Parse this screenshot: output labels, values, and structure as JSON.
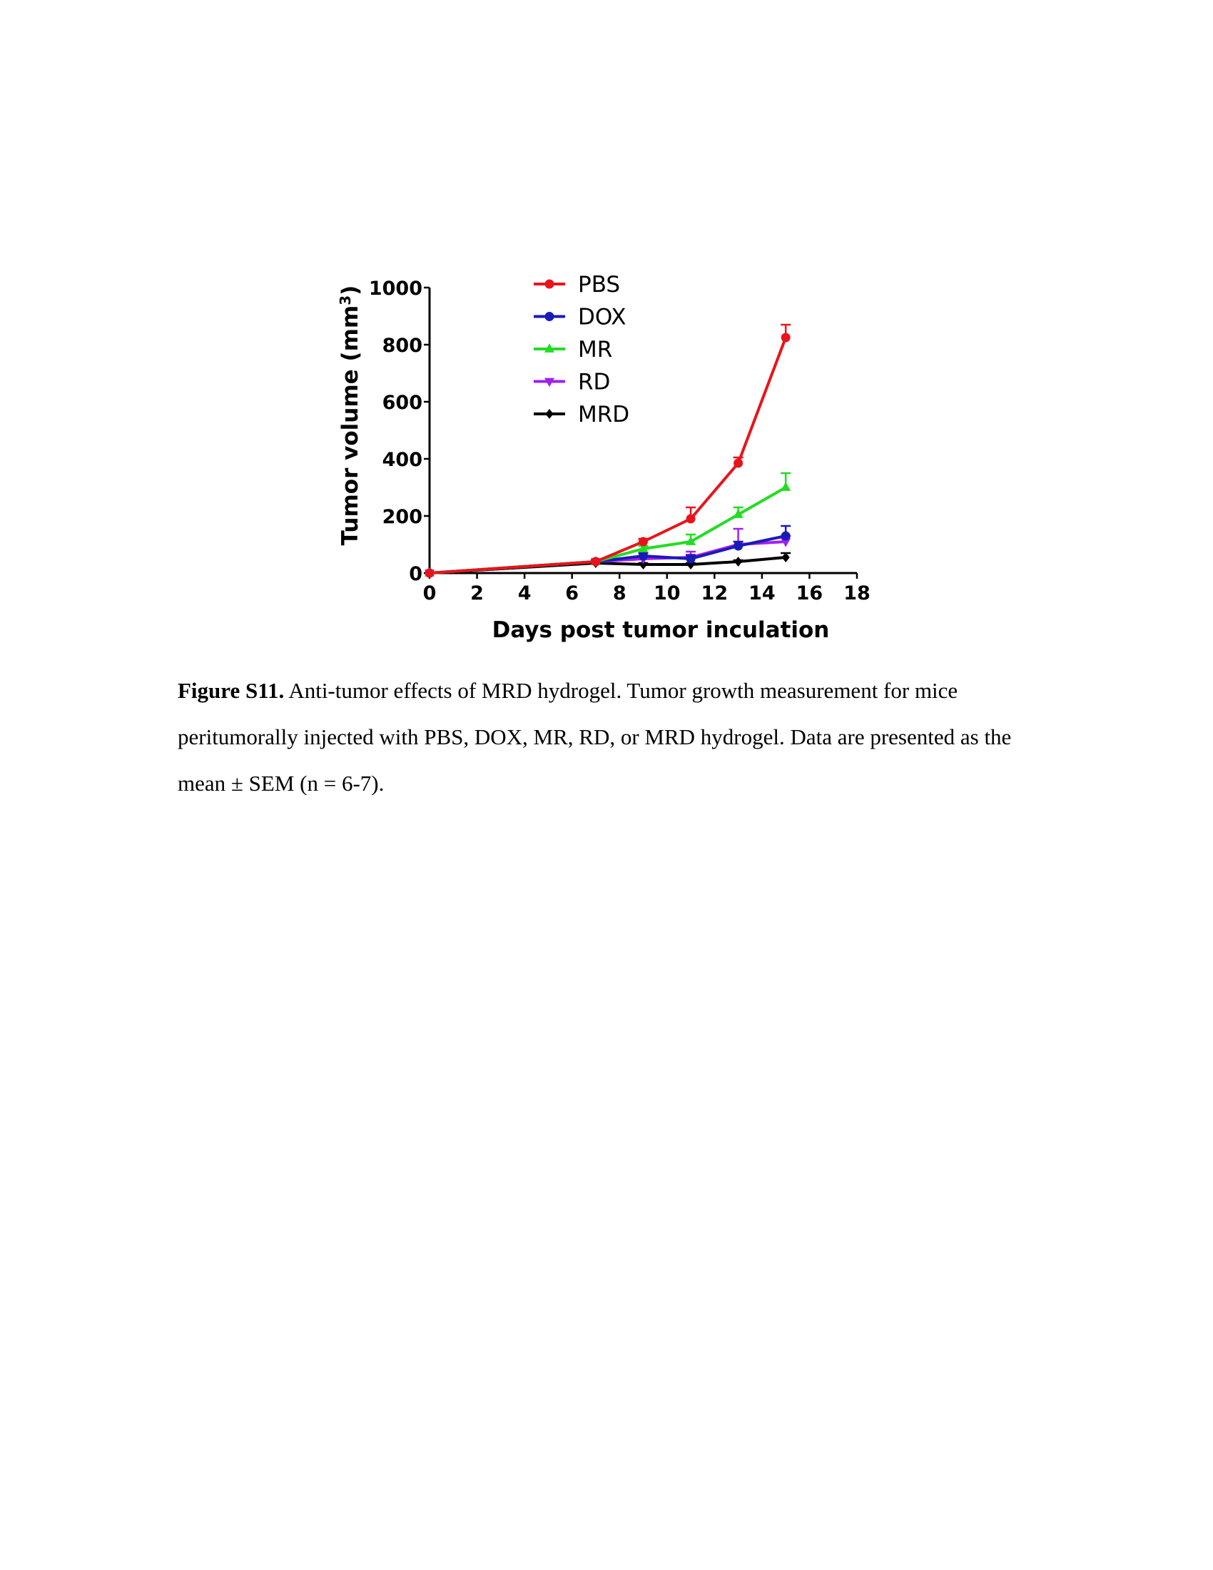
{
  "chart_data": {
    "type": "line",
    "title": "",
    "xlabel": "Days post tumor inculation",
    "ylabel_main": "Tumor volume (mm",
    "ylabel_sup": "3",
    "ylabel_close": ")",
    "xlim": [
      0,
      18
    ],
    "ylim": [
      0,
      1000
    ],
    "xticks": [
      0,
      2,
      4,
      6,
      8,
      10,
      12,
      14,
      16,
      18
    ],
    "yticks": [
      0,
      200,
      400,
      600,
      800,
      1000
    ],
    "grid": false,
    "legend_position": "top-center",
    "series": [
      {
        "name": "PBS",
        "color": "#e8141b",
        "marker": "circle",
        "x": [
          0,
          7,
          9,
          11,
          13,
          15
        ],
        "y": [
          0,
          40,
          110,
          190,
          385,
          825
        ],
        "err": [
          0,
          5,
          10,
          40,
          20,
          45
        ]
      },
      {
        "name": "DOX",
        "color": "#1a1ab8",
        "marker": "circle",
        "x": [
          0,
          7,
          9,
          11,
          13,
          15
        ],
        "y": [
          0,
          40,
          60,
          50,
          95,
          130
        ],
        "err": [
          0,
          5,
          10,
          12,
          15,
          35
        ]
      },
      {
        "name": "MR",
        "color": "#22dd22",
        "marker": "triangle-up",
        "x": [
          0,
          7,
          9,
          11,
          13,
          15
        ],
        "y": [
          0,
          40,
          85,
          110,
          205,
          300
        ],
        "err": [
          0,
          5,
          10,
          25,
          25,
          50
        ]
      },
      {
        "name": "RD",
        "color": "#a020f0",
        "marker": "triangle-down",
        "x": [
          0,
          7,
          9,
          11,
          13,
          15
        ],
        "y": [
          0,
          40,
          50,
          55,
          100,
          110
        ],
        "err": [
          0,
          5,
          10,
          20,
          55,
          20
        ]
      },
      {
        "name": "MRD",
        "color": "#000000",
        "marker": "diamond",
        "x": [
          0,
          7,
          9,
          11,
          13,
          15
        ],
        "y": [
          0,
          35,
          30,
          30,
          40,
          55
        ],
        "err": [
          0,
          5,
          5,
          5,
          5,
          15
        ]
      }
    ]
  },
  "caption": {
    "label": "Figure S11.",
    "text": " Anti-tumor effects of MRD hydrogel. Tumor growth measurement for mice peritumorally injected with PBS, DOX, MR, RD, or MRD hydrogel. Data are presented as the mean ± SEM (n = 6-7)."
  }
}
